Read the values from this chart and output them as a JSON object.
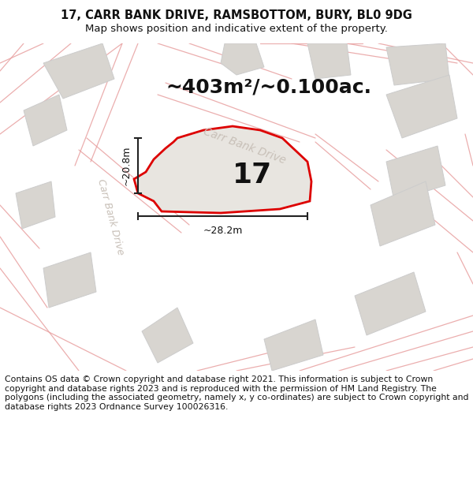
{
  "title_line1": "17, CARR BANK DRIVE, RAMSBOTTOM, BURY, BL0 9DG",
  "title_line2": "Map shows position and indicative extent of the property.",
  "area_label": "~403m²/~0.100ac.",
  "number_label": "17",
  "dim_horizontal": "~28.2m",
  "dim_vertical": "~20.8m",
  "road_label_diag": "Carr Bank Drive",
  "road_label_vert": "Carr Bank Drive",
  "footer_text": "Contains OS data © Crown copyright and database right 2021. This information is subject to Crown copyright and database rights 2023 and is reproduced with the permission of HM Land Registry. The polygons (including the associated geometry, namely x, y co-ordinates) are subject to Crown copyright and database rights 2023 Ordnance Survey 100026316.",
  "map_bg_color": "#f5f3f0",
  "plot_fill": "#e8e5e0",
  "plot_edge": "#dd0000",
  "house_fill": "#d5d2cc",
  "house_edge": "#aaaaaa",
  "neighbor_fill": "#d8d5d0",
  "neighbor_edge": "#cccccc",
  "road_line_color": "#e8a0a0",
  "dim_line_color": "#222222",
  "road_text_color": "#c8c0b8",
  "text_color": "#111111",
  "footer_bg": "#ffffff",
  "title_fontsize": 10.5,
  "subtitle_fontsize": 9.5,
  "area_fontsize": 18,
  "num_fontsize": 26,
  "dim_fontsize": 9,
  "road_fontsize": 10,
  "footer_fontsize": 7.8
}
